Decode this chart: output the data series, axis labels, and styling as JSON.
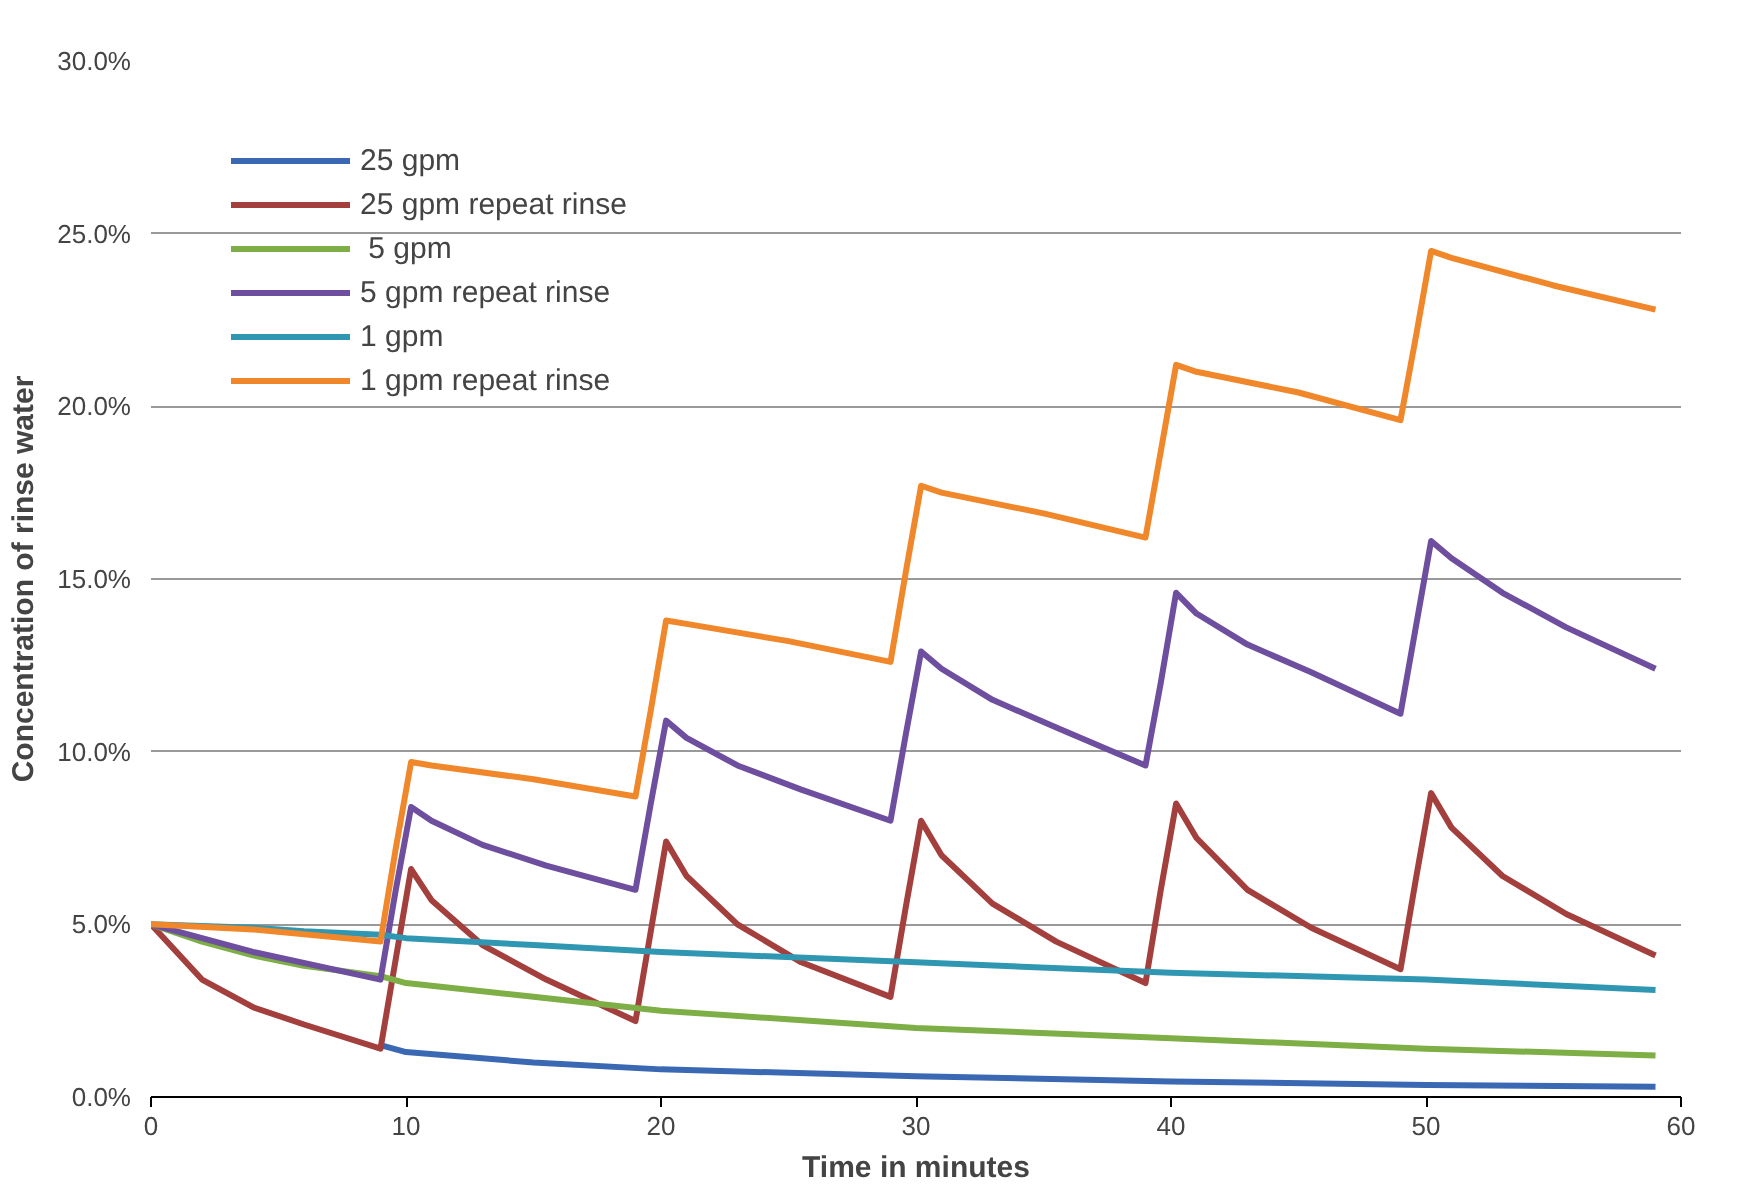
{
  "chart_data": {
    "type": "line",
    "xlabel": "Time in minutes",
    "ylabel": "Concentration of rinse water",
    "xlim": [
      0,
      60
    ],
    "xticks": [
      0,
      10,
      20,
      30,
      40,
      50,
      60
    ],
    "ylim": [
      0,
      30
    ],
    "yticks": [
      {
        "value": 0,
        "label": "0.0%"
      },
      {
        "value": 5,
        "label": "5.0%"
      },
      {
        "value": 10,
        "label": "10.0%"
      },
      {
        "value": 15,
        "label": "15.0%"
      },
      {
        "value": 20,
        "label": "20.0%"
      },
      {
        "value": 25,
        "label": "25.0%"
      },
      {
        "value": 30,
        "label": "30.0%"
      }
    ],
    "grid": "y",
    "legend": "top left",
    "marker": "none",
    "line_style": "solid",
    "series": [
      {
        "name": "25 gpm",
        "color": "#3b68b2",
        "x": [
          9,
          10,
          15,
          20,
          30,
          40,
          50,
          59
        ],
        "values": [
          1.5,
          1.3,
          1.0,
          0.8,
          0.6,
          0.45,
          0.35,
          0.3
        ]
      },
      {
        "name": "25 gpm repeat rinse",
        "color": "#a3403d",
        "x": [
          0,
          2,
          4,
          6,
          9,
          9.6,
          10.2,
          11,
          13,
          15.5,
          19,
          19.6,
          20.2,
          21,
          23,
          25.5,
          29,
          29.6,
          30.2,
          31,
          33,
          35.5,
          39,
          39.6,
          40.2,
          41,
          43,
          45.5,
          49,
          49.6,
          50.2,
          51,
          53,
          55.5,
          59
        ],
        "values": [
          5,
          3.4,
          2.6,
          2.1,
          1.4,
          4,
          6.6,
          5.7,
          4.4,
          3.4,
          2.2,
          4.8,
          7.4,
          6.4,
          5,
          3.9,
          2.9,
          5.5,
          8.0,
          7,
          5.6,
          4.5,
          3.3,
          6,
          8.5,
          7.5,
          6,
          4.9,
          3.7,
          6.3,
          8.8,
          7.8,
          6.4,
          5.3,
          4.1
        ]
      },
      {
        "name": " 5 gpm",
        "color": "#7eae46",
        "x": [
          0,
          2,
          4,
          6,
          9,
          10,
          15,
          20,
          30,
          40,
          50,
          59
        ],
        "values": [
          5,
          4.5,
          4.1,
          3.8,
          3.5,
          3.3,
          2.9,
          2.5,
          2.0,
          1.7,
          1.4,
          1.2
        ]
      },
      {
        "name": "5 gpm repeat rinse",
        "color": "#6e4f9f",
        "x": [
          0,
          4,
          9,
          9.6,
          10.2,
          11,
          13,
          15.5,
          19,
          19.6,
          20.2,
          21,
          23,
          25.5,
          29,
          29.6,
          30.2,
          31,
          33,
          35.5,
          39,
          39.6,
          40.2,
          41,
          43,
          45.5,
          49,
          49.6,
          50.2,
          51,
          53,
          55.5,
          59
        ],
        "values": [
          5,
          4.2,
          3.4,
          6,
          8.4,
          8.0,
          7.3,
          6.7,
          6.0,
          8.5,
          10.9,
          10.4,
          9.6,
          8.9,
          8.0,
          10.5,
          12.9,
          12.4,
          11.5,
          10.7,
          9.6,
          12,
          14.6,
          14,
          13.1,
          12.3,
          11.1,
          13.6,
          16.1,
          15.6,
          14.6,
          13.6,
          12.4
        ]
      },
      {
        "name": "1 gpm",
        "color": "#2f97b1",
        "x": [
          0,
          2,
          4,
          6,
          9,
          10,
          15,
          20,
          30,
          40,
          50,
          59
        ],
        "values": [
          5,
          4.95,
          4.9,
          4.8,
          4.7,
          4.6,
          4.4,
          4.2,
          3.9,
          3.6,
          3.4,
          3.1
        ]
      },
      {
        "name": "1 gpm repeat rinse",
        "color": "#f0872a",
        "x": [
          0,
          4,
          9,
          9.6,
          10.2,
          11,
          15,
          19,
          19.6,
          20.2,
          21,
          25,
          29,
          29.6,
          30.2,
          31,
          35,
          39,
          39.6,
          40.2,
          41,
          45,
          49,
          49.6,
          50.2,
          51,
          55,
          59
        ],
        "values": [
          5,
          4.85,
          4.5,
          7.2,
          9.7,
          9.6,
          9.2,
          8.7,
          11.2,
          13.8,
          13.7,
          13.2,
          12.6,
          15.2,
          17.7,
          17.5,
          16.9,
          16.2,
          18.7,
          21.2,
          21,
          20.4,
          19.6,
          22,
          24.5,
          24.3,
          23.5,
          22.8
        ]
      }
    ]
  }
}
